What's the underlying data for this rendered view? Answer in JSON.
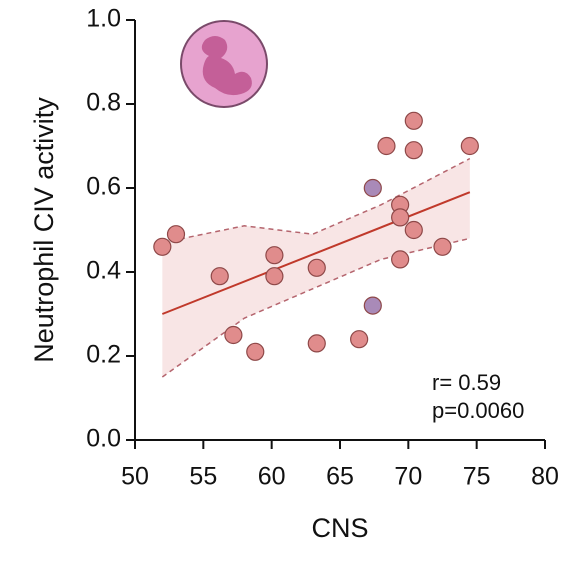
{
  "chart_data": {
    "type": "scatter",
    "xlabel": "CNS",
    "ylabel": "Neutrophil CIV activity",
    "xlim": [
      50,
      80
    ],
    "xticks": [
      50,
      55,
      60,
      65,
      70,
      75,
      80
    ],
    "ylim": [
      0,
      1
    ],
    "yticks": [
      {
        "value": 0,
        "label": "0.0"
      },
      0.2,
      0.4,
      0.6,
      0.8,
      {
        "value": 1,
        "label": "1.0"
      }
    ],
    "series": [
      {
        "color": "#e08c8c",
        "x": [
          52,
          53,
          56.2,
          57.2,
          58.8,
          60.2,
          60.2,
          63.3,
          63.3,
          66.4,
          68.4,
          69.4,
          69.4,
          69.4,
          70.4,
          70.4,
          70.4,
          72.5,
          74.5
        ],
        "values": [
          0.46,
          0.49,
          0.39,
          0.25,
          0.21,
          0.44,
          0.39,
          0.41,
          0.23,
          0.24,
          0.7,
          0.56,
          0.53,
          0.43,
          0.76,
          0.69,
          0.5,
          0.46,
          0.7
        ]
      },
      {
        "color": "#a98ab8",
        "x": [
          67.4,
          67.4
        ],
        "values": [
          0.6,
          0.32
        ]
      }
    ],
    "fit": {
      "color": "#c0392b",
      "x": [
        52,
        74.5
      ],
      "values": [
        0.3,
        0.59
      ]
    },
    "band": {
      "color": "#f6dede",
      "x": [
        52,
        58,
        63,
        68,
        74.5
      ],
      "upper": [
        0.47,
        0.51,
        0.49,
        0.56,
        0.67
      ],
      "lower": [
        0.15,
        0.29,
        0.36,
        0.43,
        0.48
      ]
    },
    "annotations": [
      "r= 0.59",
      "p=0.0060"
    ]
  }
}
